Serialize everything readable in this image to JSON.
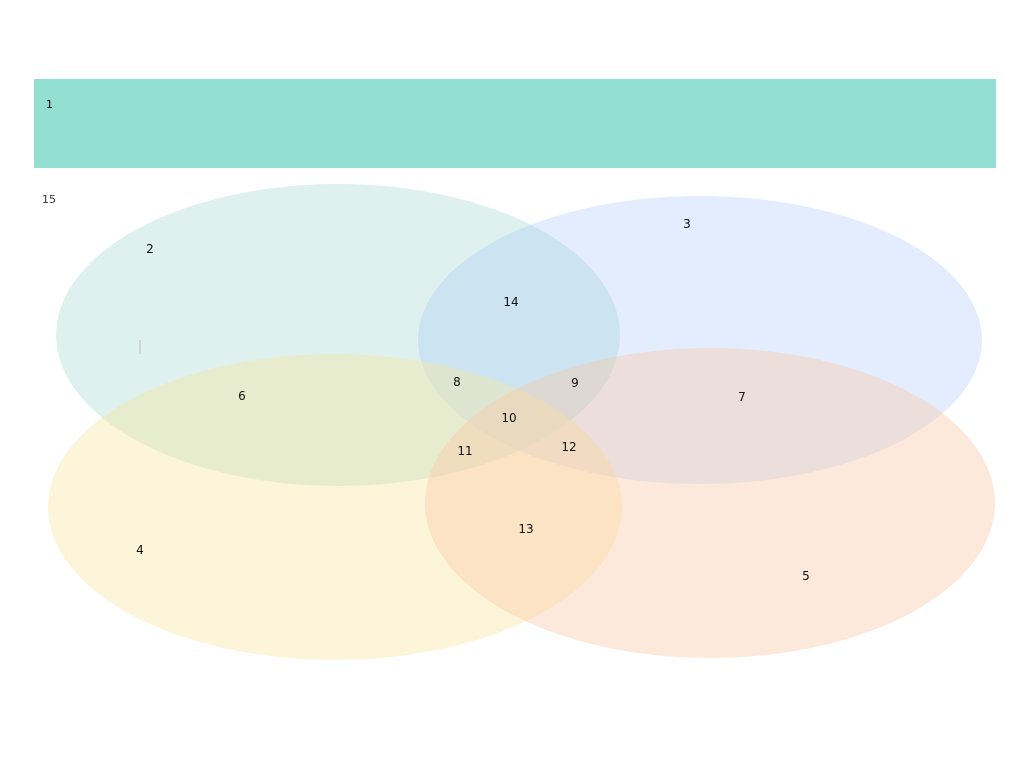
{
  "banner": {
    "label": "1",
    "color": "#93e0d3"
  },
  "outside_label": "15",
  "sets": [
    {
      "id": "A",
      "color": "#dff0ec"
    },
    {
      "id": "B",
      "color": "#e2ecfb"
    },
    {
      "id": "C",
      "color": "#fbf1c9"
    },
    {
      "id": "D",
      "color": "#fde0d0"
    }
  ],
  "regions": [
    {
      "id": "r2",
      "label": "2"
    },
    {
      "id": "r3",
      "label": "3"
    },
    {
      "id": "r4",
      "label": "4"
    },
    {
      "id": "r5",
      "label": "5"
    },
    {
      "id": "r6",
      "label": "6"
    },
    {
      "id": "r7",
      "label": "7"
    },
    {
      "id": "r8",
      "label": "8"
    },
    {
      "id": "r9",
      "label": "9"
    },
    {
      "id": "r10",
      "label": "10"
    },
    {
      "id": "r11",
      "label": "11"
    },
    {
      "id": "r12",
      "label": "12"
    },
    {
      "id": "r13",
      "label": "13"
    },
    {
      "id": "r14",
      "label": "14"
    }
  ]
}
